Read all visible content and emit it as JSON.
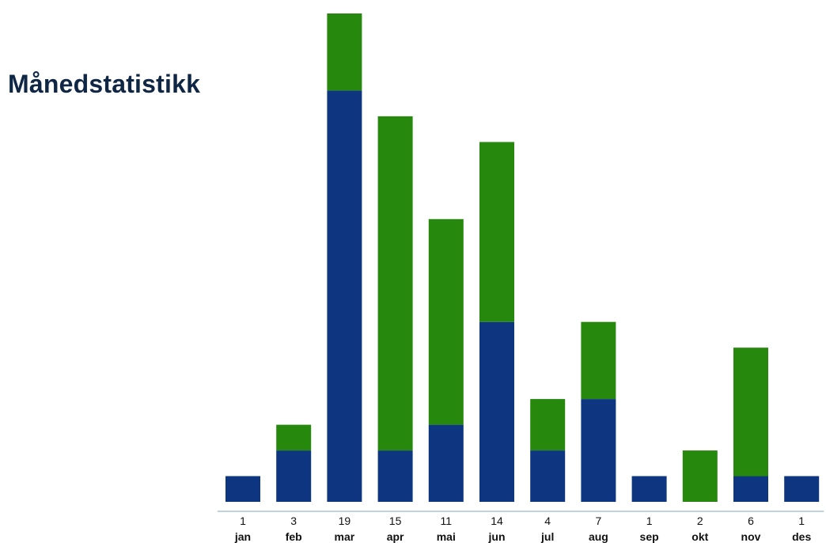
{
  "page": {
    "title": "Månedstatistikk"
  },
  "chart_data": {
    "type": "bar",
    "stacked": true,
    "title": "",
    "xlabel": "",
    "ylabel": "",
    "ylim": [
      0,
      19
    ],
    "grid": false,
    "legend": "none",
    "categories": [
      "jan",
      "feb",
      "mar",
      "apr",
      "mai",
      "jun",
      "jul",
      "aug",
      "sep",
      "okt",
      "nov",
      "des"
    ],
    "totals": [
      1,
      3,
      19,
      15,
      11,
      14,
      4,
      7,
      1,
      2,
      6,
      1
    ],
    "series": [
      {
        "color": "#0d3580",
        "values": [
          1,
          2,
          16,
          2,
          3,
          7,
          2,
          4,
          1,
          0,
          1,
          1
        ]
      },
      {
        "color": "#26890d",
        "values": [
          0,
          1,
          3,
          13,
          8,
          7,
          2,
          3,
          0,
          2,
          5,
          0
        ]
      }
    ],
    "axis_color": "#a9c4d9"
  }
}
